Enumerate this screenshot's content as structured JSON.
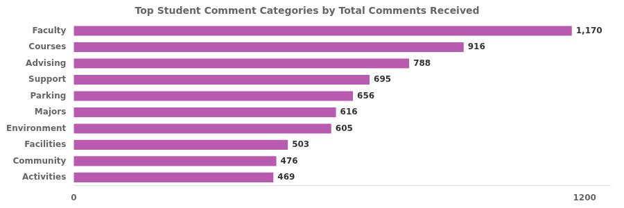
{
  "chart_data": {
    "type": "bar",
    "orientation": "horizontal",
    "title": "Top Student Comment Categories by Total Comments Received",
    "categories": [
      "Activities",
      "Community",
      "Facilities",
      "Environment",
      "Majors",
      "Parking",
      "Support",
      "Advising",
      "Courses",
      "Faculty"
    ],
    "values": [
      469,
      476,
      503,
      605,
      616,
      656,
      695,
      788,
      916,
      1170
    ],
    "value_labels": [
      "469",
      "476",
      "503",
      "605",
      "616",
      "656",
      "695",
      "788",
      "916",
      "1,170"
    ],
    "data_labels": true,
    "color": "#b85ab0",
    "xlim": [
      0,
      1260
    ],
    "xticks": [
      0,
      1200
    ],
    "grid": false
  }
}
